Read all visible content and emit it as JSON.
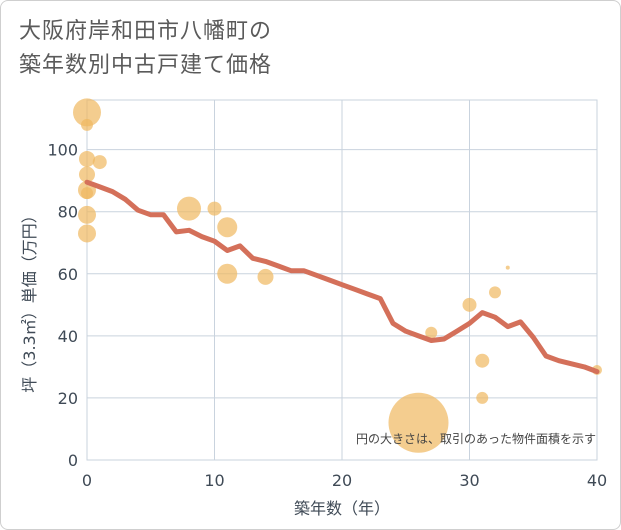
{
  "chart_data": {
    "type": "scatter",
    "title_lines": [
      "大阪府岸和田市八幡町の",
      "築年数別中古戸建て価格"
    ],
    "xlabel": "築年数（年）",
    "ylabel": "坪（3.3㎡）単価（万円）",
    "xlim": [
      0,
      40
    ],
    "ylim": [
      0,
      116
    ],
    "xticks": [
      0,
      10,
      20,
      30,
      40
    ],
    "yticks": [
      0,
      20,
      40,
      60,
      80,
      100
    ],
    "x_tick_labels": [
      "0",
      "10",
      "20",
      "30",
      "40"
    ],
    "y_tick_labels": [
      "0",
      "20",
      "40",
      "60",
      "80",
      "100"
    ],
    "annotation": "円の大きさは、取引のあった物件面積を示す",
    "colors": {
      "points": "#f0b860",
      "line": "#d4705a",
      "grid": "#c9d3de"
    },
    "points": [
      {
        "x": 0,
        "y": 112,
        "size": 14
      },
      {
        "x": 0,
        "y": 108,
        "size": 6
      },
      {
        "x": 0,
        "y": 97,
        "size": 8
      },
      {
        "x": 0,
        "y": 92,
        "size": 8
      },
      {
        "x": 0,
        "y": 87,
        "size": 9
      },
      {
        "x": 0,
        "y": 86,
        "size": 6
      },
      {
        "x": 0,
        "y": 79,
        "size": 9
      },
      {
        "x": 0,
        "y": 73,
        "size": 9
      },
      {
        "x": 1,
        "y": 96,
        "size": 7
      },
      {
        "x": 8,
        "y": 81,
        "size": 12
      },
      {
        "x": 10,
        "y": 81,
        "size": 7
      },
      {
        "x": 11,
        "y": 75,
        "size": 10
      },
      {
        "x": 11,
        "y": 60,
        "size": 10
      },
      {
        "x": 14,
        "y": 59,
        "size": 8
      },
      {
        "x": 26,
        "y": 12,
        "size": 30
      },
      {
        "x": 27,
        "y": 41,
        "size": 6
      },
      {
        "x": 30,
        "y": 50,
        "size": 7
      },
      {
        "x": 31,
        "y": 32,
        "size": 7
      },
      {
        "x": 31,
        "y": 20,
        "size": 6
      },
      {
        "x": 32,
        "y": 54,
        "size": 6
      },
      {
        "x": 33,
        "y": 62,
        "size": 2
      },
      {
        "x": 40,
        "y": 29,
        "size": 5
      }
    ],
    "trend_line": {
      "x": [
        0,
        1,
        2,
        3,
        4,
        5,
        6,
        7,
        8,
        9,
        10,
        11,
        12,
        13,
        14,
        15,
        16,
        17,
        18,
        19,
        20,
        21,
        22,
        23,
        24,
        25,
        26,
        27,
        28,
        29,
        30,
        31,
        32,
        33,
        34,
        35,
        36,
        37,
        38,
        39,
        40
      ],
      "y": [
        89.5,
        88,
        86.5,
        84,
        80.5,
        79,
        79,
        73.5,
        74,
        72,
        70.5,
        67.5,
        69,
        65,
        64,
        62.5,
        61,
        61,
        59.5,
        58,
        56.5,
        55,
        53.5,
        52,
        44,
        41.5,
        40,
        38.5,
        39,
        41.5,
        44,
        47.5,
        46,
        43,
        44.5,
        39.5,
        33.5,
        32,
        31,
        30,
        28.5
      ]
    }
  }
}
